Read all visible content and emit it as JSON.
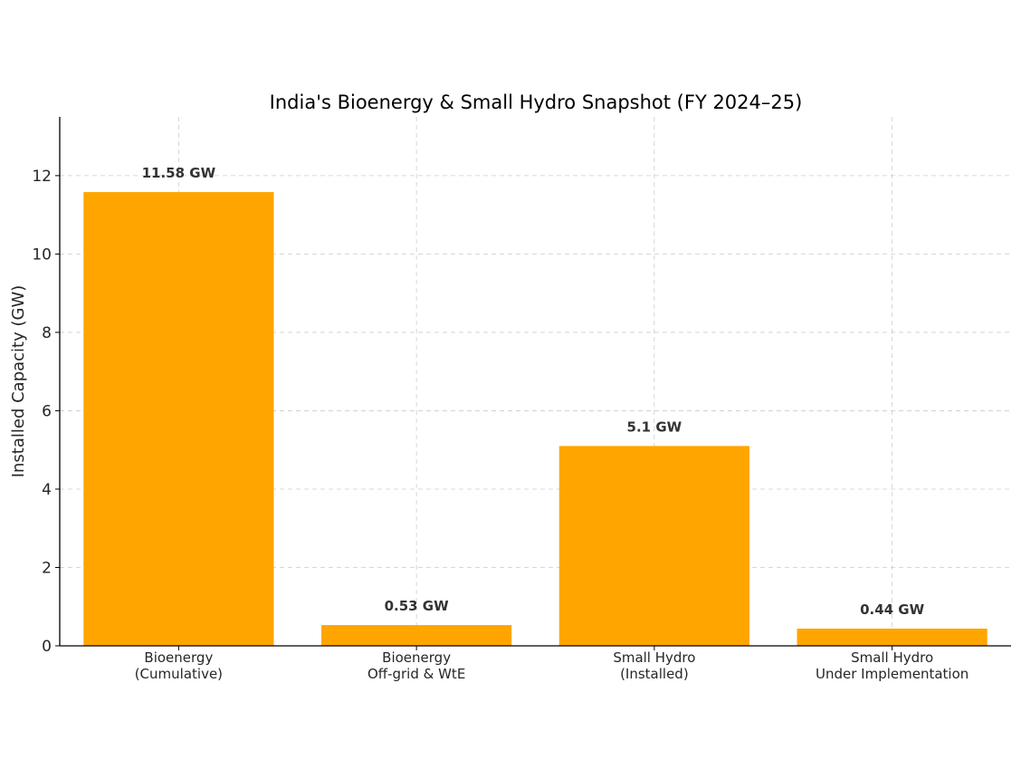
{
  "chart_data": {
    "type": "bar",
    "title": "India's Bioenergy & Small Hydro Snapshot (FY 2024–25)",
    "xlabel": "",
    "ylabel": "Installed Capacity (GW)",
    "ylim": [
      0,
      13.5
    ],
    "yticks": [
      0,
      2,
      4,
      6,
      8,
      10,
      12
    ],
    "categories": [
      [
        "Bioenergy",
        "(Cumulative)"
      ],
      [
        "Bioenergy",
        "Off-grid & WtE"
      ],
      [
        "Small Hydro",
        "(Installed)"
      ],
      [
        "Small Hydro",
        "Under Implementation"
      ]
    ],
    "values": [
      11.58,
      0.53,
      5.1,
      0.44
    ],
    "data_labels": [
      "11.58 GW",
      "0.53 GW",
      "5.1 GW",
      "0.44 GW"
    ],
    "grid": true,
    "legend": "none",
    "colors": {
      "bar": "#FFA500",
      "label": "#333333",
      "axis": "#000000",
      "grid": "#cccccc",
      "text": "#262626"
    }
  }
}
